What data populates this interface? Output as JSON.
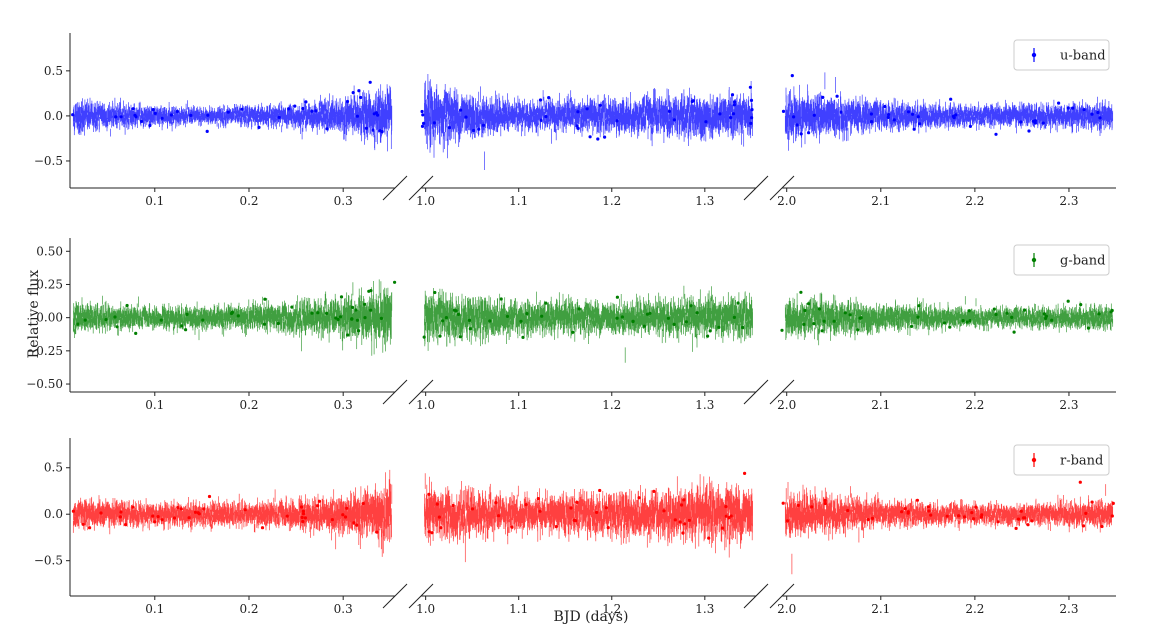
{
  "chart_data": {
    "type": "scatter",
    "xlabel": "BJD (days)",
    "ylabel": "Relative flux",
    "segments": [
      {
        "xlim": [
          0.01,
          0.355
        ],
        "ticks": [
          0.1,
          0.2,
          0.3
        ],
        "tick_labels": [
          "0.1",
          "0.2",
          "0.3"
        ]
      },
      {
        "xlim": [
          0.995,
          1.355
        ],
        "ticks": [
          1.0,
          1.1,
          1.2,
          1.3
        ],
        "tick_labels": [
          "1.0",
          "1.1",
          "1.2",
          "1.3"
        ]
      },
      {
        "xlim": [
          1.995,
          2.35
        ],
        "ticks": [
          2.0,
          2.1,
          2.2,
          2.3
        ],
        "tick_labels": [
          "2.0",
          "2.1",
          "2.2",
          "2.3"
        ]
      }
    ],
    "panels": [
      {
        "name": "u-band",
        "color": "#0000ff",
        "ylim": [
          -0.8,
          0.92
        ],
        "yticks": [
          -0.5,
          0.0,
          0.5
        ],
        "ytick_labels": [
          "−0.5",
          "0.0",
          "0.5"
        ],
        "base_scatter": 0.09,
        "envelope": [
          [
            0.01,
            0.16
          ],
          [
            0.05,
            0.12
          ],
          [
            0.15,
            0.08
          ],
          [
            0.25,
            0.11
          ],
          [
            0.3,
            0.16
          ],
          [
            0.35,
            0.25
          ],
          [
            1.0,
            0.28
          ],
          [
            1.05,
            0.2
          ],
          [
            1.1,
            0.13
          ],
          [
            1.2,
            0.16
          ],
          [
            1.3,
            0.2
          ],
          [
            1.35,
            0.2
          ],
          [
            2.0,
            0.22
          ],
          [
            2.05,
            0.18
          ],
          [
            2.1,
            0.13
          ],
          [
            2.2,
            0.1
          ],
          [
            2.3,
            0.12
          ],
          [
            2.35,
            0.13
          ]
        ]
      },
      {
        "name": "g-band",
        "color": "#007f00",
        "ylim": [
          -0.56,
          0.6
        ],
        "yticks": [
          -0.5,
          -0.25,
          0.0,
          0.25,
          0.5
        ],
        "ytick_labels": [
          "−0.50",
          "−0.25",
          "0.00",
          "0.25",
          "0.50"
        ],
        "base_scatter": 0.06,
        "envelope": [
          [
            0.01,
            0.09
          ],
          [
            0.1,
            0.07
          ],
          [
            0.2,
            0.08
          ],
          [
            0.28,
            0.11
          ],
          [
            0.33,
            0.16
          ],
          [
            0.35,
            0.2
          ],
          [
            1.0,
            0.15
          ],
          [
            1.1,
            0.11
          ],
          [
            1.2,
            0.1
          ],
          [
            1.3,
            0.12
          ],
          [
            1.35,
            0.13
          ],
          [
            2.0,
            0.12
          ],
          [
            2.1,
            0.09
          ],
          [
            2.2,
            0.06
          ],
          [
            2.3,
            0.07
          ],
          [
            2.35,
            0.08
          ]
        ]
      },
      {
        "name": "r-band",
        "color": "#ff0000",
        "ylim": [
          -0.88,
          0.82
        ],
        "yticks": [
          -0.5,
          0.0,
          0.5
        ],
        "ytick_labels": [
          "−0.5",
          "0.0",
          "0.5"
        ],
        "base_scatter": 0.08,
        "envelope": [
          [
            0.01,
            0.13
          ],
          [
            0.1,
            0.11
          ],
          [
            0.2,
            0.11
          ],
          [
            0.28,
            0.15
          ],
          [
            0.33,
            0.22
          ],
          [
            0.35,
            0.28
          ],
          [
            1.0,
            0.24
          ],
          [
            1.1,
            0.16
          ],
          [
            1.2,
            0.19
          ],
          [
            1.3,
            0.24
          ],
          [
            1.35,
            0.24
          ],
          [
            2.0,
            0.2
          ],
          [
            2.1,
            0.12
          ],
          [
            2.2,
            0.09
          ],
          [
            2.3,
            0.11
          ],
          [
            2.35,
            0.13
          ]
        ]
      }
    ],
    "legend_position": "top-right",
    "grid": false
  }
}
